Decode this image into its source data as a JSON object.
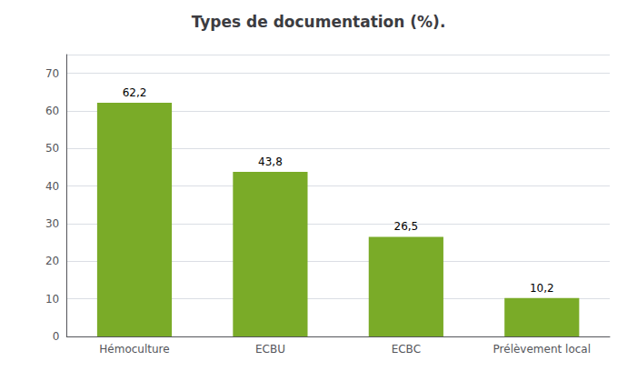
{
  "chart_data": {
    "type": "bar",
    "title": "Types de documentation (%).",
    "categories": [
      "Hémoculture",
      "ECBU",
      "ECBC",
      "Prélèvement local"
    ],
    "values": [
      62.2,
      43.8,
      26.5,
      10.2
    ],
    "value_labels": [
      "62,2",
      "43,8",
      "26,5",
      "10,2"
    ],
    "data_labels": true,
    "color": "#7AAB28",
    "ylim": [
      0,
      75
    ],
    "yticks": [
      0,
      10,
      20,
      30,
      40,
      50,
      60,
      70
    ],
    "grid": true
  }
}
